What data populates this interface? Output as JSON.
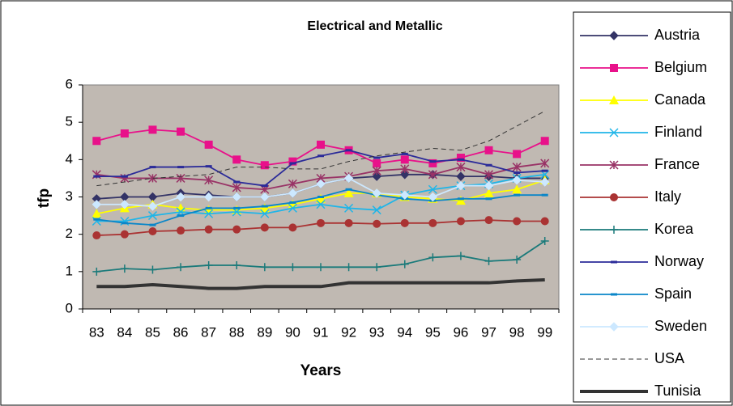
{
  "chart_data": {
    "type": "line",
    "title": "Electrical and Metallic",
    "x_label": "Years",
    "y_label": "tfp",
    "categories": [
      "83",
      "84",
      "85",
      "86",
      "87",
      "88",
      "89",
      "90",
      "91",
      "92",
      "93",
      "94",
      "95",
      "96",
      "97",
      "98",
      "99"
    ],
    "ylim": [
      0,
      6
    ],
    "yticks": [
      0,
      1,
      2,
      3,
      4,
      5,
      6
    ],
    "grid": false,
    "legend": "right",
    "series": [
      {
        "name": "Austria",
        "color": "#333366",
        "marker": "diamond",
        "values": [
          2.95,
          3.0,
          3.0,
          3.1,
          3.05,
          3.0,
          3.0,
          3.1,
          3.35,
          3.5,
          3.55,
          3.6,
          3.6,
          3.55,
          3.55,
          3.5,
          3.5
        ]
      },
      {
        "name": "Belgium",
        "color": "#e8118a",
        "marker": "square",
        "values": [
          4.5,
          4.7,
          4.8,
          4.75,
          4.4,
          4.0,
          3.85,
          3.95,
          4.4,
          4.25,
          3.9,
          4.0,
          3.9,
          4.05,
          4.25,
          4.15,
          4.5
        ]
      },
      {
        "name": "Canada",
        "color": "#ffff00",
        "marker": "triangle",
        "values": [
          2.55,
          2.7,
          2.8,
          2.7,
          2.65,
          2.65,
          2.7,
          2.8,
          2.95,
          3.1,
          3.1,
          3.0,
          2.95,
          2.9,
          3.1,
          3.2,
          3.45
        ]
      },
      {
        "name": "Finland",
        "color": "#1fb5e8",
        "marker": "x",
        "values": [
          2.35,
          2.35,
          2.5,
          2.6,
          2.55,
          2.6,
          2.55,
          2.7,
          2.8,
          2.7,
          2.65,
          3.05,
          3.2,
          3.3,
          3.35,
          3.5,
          3.6
        ]
      },
      {
        "name": "France",
        "color": "#993366",
        "marker": "star",
        "values": [
          3.6,
          3.5,
          3.5,
          3.5,
          3.45,
          3.25,
          3.2,
          3.35,
          3.5,
          3.55,
          3.7,
          3.75,
          3.6,
          3.8,
          3.6,
          3.8,
          3.9
        ]
      },
      {
        "name": "Italy",
        "color": "#aa3333",
        "marker": "circle",
        "values": [
          1.97,
          2.0,
          2.08,
          2.1,
          2.13,
          2.13,
          2.18,
          2.18,
          2.3,
          2.3,
          2.28,
          2.3,
          2.3,
          2.35,
          2.38,
          2.35,
          2.35
        ]
      },
      {
        "name": "Korea",
        "color": "#1a7a7a",
        "marker": "plus",
        "values": [
          1.0,
          1.08,
          1.05,
          1.12,
          1.17,
          1.17,
          1.12,
          1.12,
          1.12,
          1.12,
          1.12,
          1.2,
          1.38,
          1.42,
          1.28,
          1.32,
          1.82
        ]
      },
      {
        "name": "Norway",
        "color": "#2b2b99",
        "marker": "dash",
        "values": [
          3.55,
          3.55,
          3.8,
          3.8,
          3.82,
          3.4,
          3.3,
          3.9,
          4.1,
          4.25,
          4.05,
          4.15,
          3.95,
          4.0,
          3.85,
          3.65,
          3.7
        ]
      },
      {
        "name": "Spain",
        "color": "#0a86c8",
        "marker": "dash",
        "values": [
          2.4,
          2.3,
          2.25,
          2.5,
          2.7,
          2.7,
          2.75,
          2.85,
          3.0,
          3.2,
          3.05,
          2.95,
          2.9,
          2.95,
          2.95,
          3.05,
          3.05
        ]
      },
      {
        "name": "Sweden",
        "color": "#cce8ff",
        "marker": "diamond",
        "values": [
          2.8,
          2.8,
          2.75,
          3.0,
          3.0,
          3.0,
          3.0,
          3.1,
          3.35,
          3.5,
          3.1,
          3.05,
          3.0,
          3.3,
          3.3,
          3.45,
          3.4
        ]
      },
      {
        "name": "USA",
        "color": "#333333",
        "dash": true,
        "values": [
          3.3,
          3.4,
          3.5,
          3.55,
          3.6,
          3.8,
          3.8,
          3.75,
          3.75,
          3.95,
          4.1,
          4.2,
          4.3,
          4.25,
          4.5,
          4.9,
          5.3
        ]
      },
      {
        "name": "Tunisia",
        "color": "#333333",
        "thick": true,
        "values": [
          0.6,
          0.6,
          0.65,
          0.6,
          0.55,
          0.55,
          0.6,
          0.6,
          0.6,
          0.7,
          0.7,
          0.7,
          0.7,
          0.7,
          0.7,
          0.75,
          0.78
        ]
      }
    ]
  }
}
